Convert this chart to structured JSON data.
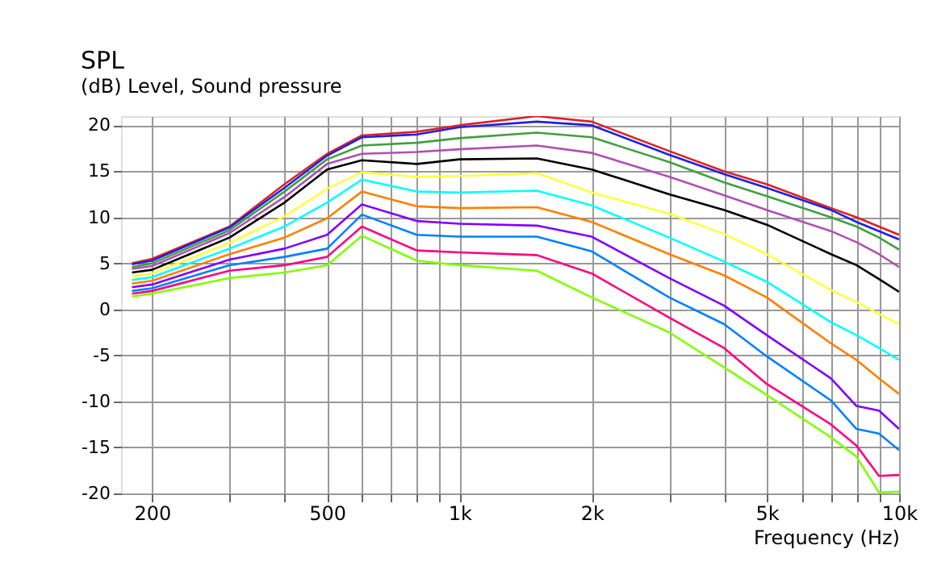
{
  "chart_data": {
    "type": "line",
    "title": "SPL",
    "subtitle": "(dB)  Level, Sound pressure",
    "xlabel": "Frequency  (Hz)",
    "log": "x",
    "grid": true,
    "marker": "none",
    "line_style": "solid",
    "xlim": [
      170,
      10000
    ],
    "ylim": [
      -20,
      21
    ],
    "xticks": [
      200,
      {
        "value": 300,
        "label": null
      },
      {
        "value": 400,
        "label": null
      },
      500,
      {
        "value": 600,
        "label": null
      },
      {
        "value": 700,
        "label": null
      },
      {
        "value": 800,
        "label": null
      },
      {
        "value": 900,
        "label": null
      },
      {
        "value": 1000,
        "label": "1k"
      },
      {
        "value": 2000,
        "label": "2k"
      },
      {
        "value": 3000,
        "label": null
      },
      {
        "value": 4000,
        "label": null
      },
      {
        "value": 5000,
        "label": "5k"
      },
      {
        "value": 6000,
        "label": null
      },
      {
        "value": 7000,
        "label": null
      },
      {
        "value": 8000,
        "label": null
      },
      {
        "value": 9000,
        "label": null
      },
      {
        "value": 10000,
        "label": "10k"
      }
    ],
    "yticks": [
      -20,
      -15,
      -10,
      -5,
      0,
      5,
      10,
      15,
      20
    ],
    "x": [
      180,
      200,
      300,
      400,
      500,
      600,
      800,
      1000,
      1500,
      2000,
      3000,
      4000,
      5000,
      7000,
      8000,
      9000,
      10000
    ],
    "series": [
      {
        "color": "#dd2222",
        "values": [
          5.0,
          5.5,
          9.0,
          13.6,
          16.9,
          18.9,
          19.3,
          20.0,
          21.0,
          20.4,
          17.2,
          15.0,
          13.6,
          11.0,
          10.0,
          9.0,
          8.1
        ]
      },
      {
        "color": "#2020e0",
        "values": [
          4.9,
          5.3,
          8.9,
          13.2,
          16.7,
          18.7,
          19.0,
          19.8,
          20.4,
          20.0,
          16.8,
          14.7,
          13.2,
          10.8,
          9.5,
          8.5,
          7.6
        ]
      },
      {
        "color": "#40a040",
        "values": [
          4.6,
          5.0,
          8.6,
          12.8,
          16.3,
          17.8,
          18.1,
          18.6,
          19.2,
          18.7,
          16.0,
          13.8,
          12.3,
          10.0,
          9.0,
          7.8,
          6.5
        ]
      },
      {
        "color": "#b050b0",
        "values": [
          4.4,
          4.7,
          8.3,
          12.2,
          15.8,
          16.9,
          17.1,
          17.4,
          17.8,
          17.0,
          14.4,
          12.4,
          10.8,
          8.5,
          7.3,
          6.0,
          4.6
        ]
      },
      {
        "color": "#000000",
        "values": [
          4.0,
          4.3,
          7.8,
          11.6,
          15.2,
          16.2,
          15.8,
          16.3,
          16.4,
          15.2,
          12.5,
          10.8,
          9.2,
          6.0,
          4.8,
          3.3,
          1.9
        ]
      },
      {
        "color": "#ffff40",
        "values": [
          3.6,
          3.9,
          7.2,
          10.1,
          13.1,
          14.9,
          14.4,
          14.5,
          14.8,
          12.7,
          10.4,
          8.2,
          6.0,
          2.1,
          0.8,
          -0.5,
          -1.6
        ]
      },
      {
        "color": "#00ffff",
        "values": [
          3.2,
          3.5,
          6.6,
          9.0,
          11.6,
          14.1,
          12.8,
          12.7,
          12.9,
          11.3,
          7.8,
          5.2,
          3.0,
          -1.4,
          -2.8,
          -4.2,
          -5.5
        ]
      },
      {
        "color": "#ff8000",
        "values": [
          2.8,
          3.1,
          6.0,
          7.8,
          9.9,
          12.8,
          11.2,
          11.0,
          11.1,
          9.5,
          6.0,
          3.7,
          1.3,
          -3.7,
          -5.5,
          -7.5,
          -9.2
        ]
      },
      {
        "color": "#8000ff",
        "values": [
          2.4,
          2.7,
          5.4,
          6.6,
          8.1,
          11.4,
          9.6,
          9.3,
          9.1,
          7.9,
          3.4,
          0.4,
          -2.8,
          -7.5,
          -10.5,
          -11.0,
          -13.0
        ]
      },
      {
        "color": "#0080ff",
        "values": [
          2.0,
          2.3,
          4.8,
          5.7,
          6.6,
          10.3,
          8.1,
          7.9,
          7.9,
          6.3,
          1.3,
          -1.6,
          -5.1,
          -9.9,
          -13.0,
          -13.5,
          -15.3
        ]
      },
      {
        "color": "#ff0080",
        "values": [
          1.7,
          2.0,
          4.2,
          4.8,
          5.7,
          9.0,
          6.4,
          6.2,
          5.9,
          3.9,
          -0.9,
          -4.2,
          -8.1,
          -12.5,
          -14.8,
          -18.1,
          -18.0
        ]
      },
      {
        "color": "#80ff00",
        "values": [
          1.4,
          1.7,
          3.4,
          4.0,
          4.8,
          8.0,
          5.3,
          4.8,
          4.2,
          1.3,
          -2.5,
          -6.3,
          -9.3,
          -13.9,
          -16.0,
          -19.9,
          -19.8
        ]
      }
    ]
  }
}
